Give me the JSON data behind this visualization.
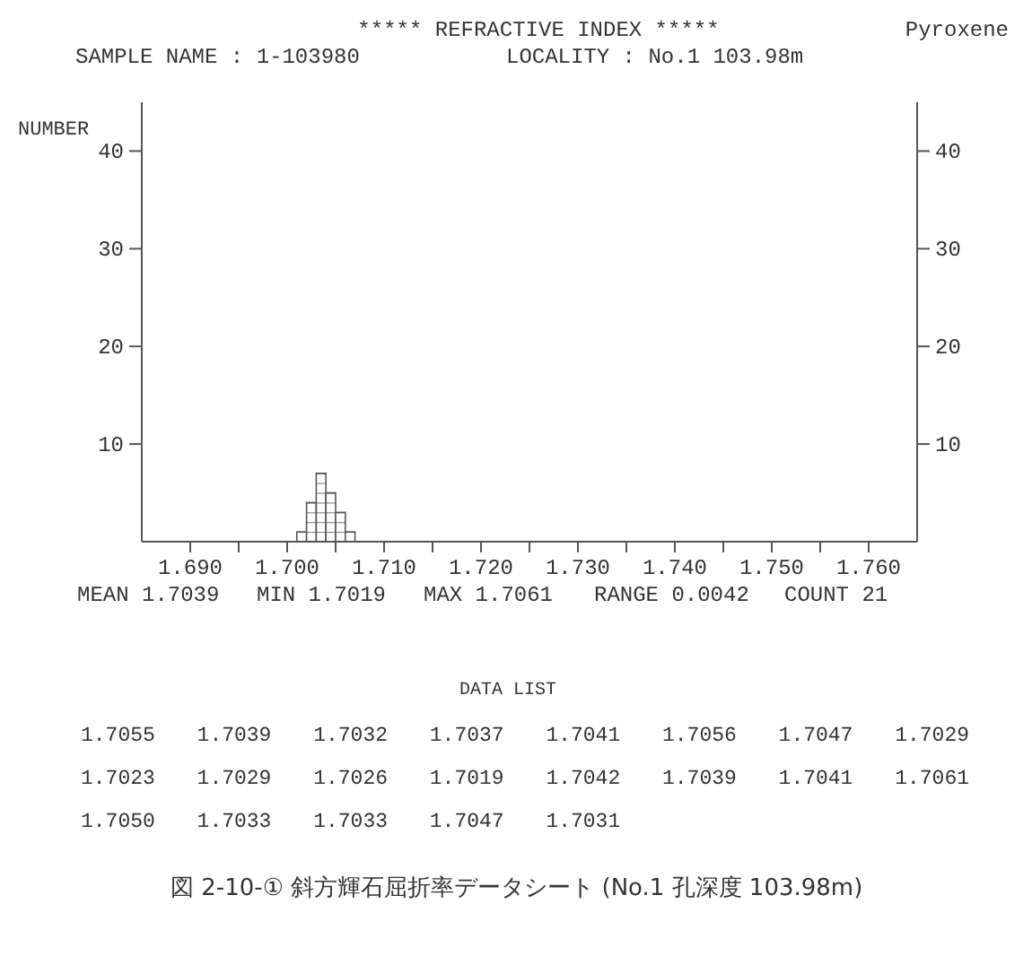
{
  "chart_data": {
    "type": "histogram",
    "title": "*****  REFRACTIVE  INDEX  *****",
    "subtitle": "Pyroxene",
    "ylabel": "NUMBER",
    "bins": [
      1.701,
      1.702,
      1.703,
      1.704,
      1.705,
      1.706,
      1.707
    ],
    "values": [
      1,
      4,
      7,
      5,
      3,
      1
    ],
    "color": "#555555",
    "xlim": [
      1.685,
      1.765
    ],
    "xticks": [
      {
        "value": 1.69,
        "label": "1.690"
      },
      {
        "value": 1.695,
        "label": null
      },
      {
        "value": 1.7,
        "label": "1.700"
      },
      {
        "value": 1.705,
        "label": null
      },
      {
        "value": 1.71,
        "label": "1.710"
      },
      {
        "value": 1.715,
        "label": null
      },
      {
        "value": 1.72,
        "label": "1.720"
      },
      {
        "value": 1.725,
        "label": null
      },
      {
        "value": 1.73,
        "label": "1.730"
      },
      {
        "value": 1.735,
        "label": null
      },
      {
        "value": 1.74,
        "label": "1.740"
      },
      {
        "value": 1.745,
        "label": null
      },
      {
        "value": 1.75,
        "label": "1.750"
      },
      {
        "value": 1.755,
        "label": null
      },
      {
        "value": 1.76,
        "label": "1.760"
      }
    ],
    "ylim": [
      0,
      45
    ],
    "yticks": [
      10,
      20,
      30,
      40
    ],
    "y2lim": [
      0,
      45
    ],
    "y2ticks": [
      10,
      20,
      30,
      40
    ],
    "grid": false,
    "annotations": [
      "SAMPLE NAME : 1-103980",
      "LOCALITY : No.1 103.98m",
      "MEAN  1.7039",
      "MIN 1.7019",
      "MAX 1.7061",
      "RANGE 0.0042",
      "COUNT  21",
      "DATA  LIST",
      "1.7055",
      "1.7039",
      "1.7032",
      "1.7037",
      "1.7041",
      "1.7056",
      "1.7047",
      "1.7029",
      "1.7023",
      "1.7029",
      "1.7026",
      "1.7019",
      "1.7042",
      "1.7039",
      "1.7041",
      "1.7061",
      "1.7050",
      "1.7033",
      "1.7033",
      "1.7047",
      "1.7031",
      "図 2-10-①  斜方輝石屈折率データシート (No.1 孔深度 103.98m)"
    ]
  }
}
